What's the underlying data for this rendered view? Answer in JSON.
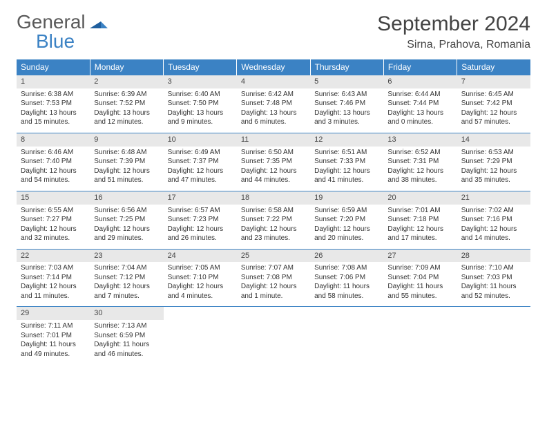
{
  "logo": {
    "word1": "General",
    "word2": "Blue"
  },
  "title": "September 2024",
  "location": "Sirna, Prahova, Romania",
  "colors": {
    "header_bg": "#3b82c4",
    "header_text": "#ffffff",
    "daynum_bg": "#e8e8e8",
    "row_border": "#3b82c4",
    "body_bg": "#ffffff"
  },
  "weekdays": [
    "Sunday",
    "Monday",
    "Tuesday",
    "Wednesday",
    "Thursday",
    "Friday",
    "Saturday"
  ],
  "weeks": [
    [
      {
        "n": "1",
        "sr": "Sunrise: 6:38 AM",
        "ss": "Sunset: 7:53 PM",
        "d1": "Daylight: 13 hours",
        "d2": "and 15 minutes."
      },
      {
        "n": "2",
        "sr": "Sunrise: 6:39 AM",
        "ss": "Sunset: 7:52 PM",
        "d1": "Daylight: 13 hours",
        "d2": "and 12 minutes."
      },
      {
        "n": "3",
        "sr": "Sunrise: 6:40 AM",
        "ss": "Sunset: 7:50 PM",
        "d1": "Daylight: 13 hours",
        "d2": "and 9 minutes."
      },
      {
        "n": "4",
        "sr": "Sunrise: 6:42 AM",
        "ss": "Sunset: 7:48 PM",
        "d1": "Daylight: 13 hours",
        "d2": "and 6 minutes."
      },
      {
        "n": "5",
        "sr": "Sunrise: 6:43 AM",
        "ss": "Sunset: 7:46 PM",
        "d1": "Daylight: 13 hours",
        "d2": "and 3 minutes."
      },
      {
        "n": "6",
        "sr": "Sunrise: 6:44 AM",
        "ss": "Sunset: 7:44 PM",
        "d1": "Daylight: 13 hours",
        "d2": "and 0 minutes."
      },
      {
        "n": "7",
        "sr": "Sunrise: 6:45 AM",
        "ss": "Sunset: 7:42 PM",
        "d1": "Daylight: 12 hours",
        "d2": "and 57 minutes."
      }
    ],
    [
      {
        "n": "8",
        "sr": "Sunrise: 6:46 AM",
        "ss": "Sunset: 7:40 PM",
        "d1": "Daylight: 12 hours",
        "d2": "and 54 minutes."
      },
      {
        "n": "9",
        "sr": "Sunrise: 6:48 AM",
        "ss": "Sunset: 7:39 PM",
        "d1": "Daylight: 12 hours",
        "d2": "and 51 minutes."
      },
      {
        "n": "10",
        "sr": "Sunrise: 6:49 AM",
        "ss": "Sunset: 7:37 PM",
        "d1": "Daylight: 12 hours",
        "d2": "and 47 minutes."
      },
      {
        "n": "11",
        "sr": "Sunrise: 6:50 AM",
        "ss": "Sunset: 7:35 PM",
        "d1": "Daylight: 12 hours",
        "d2": "and 44 minutes."
      },
      {
        "n": "12",
        "sr": "Sunrise: 6:51 AM",
        "ss": "Sunset: 7:33 PM",
        "d1": "Daylight: 12 hours",
        "d2": "and 41 minutes."
      },
      {
        "n": "13",
        "sr": "Sunrise: 6:52 AM",
        "ss": "Sunset: 7:31 PM",
        "d1": "Daylight: 12 hours",
        "d2": "and 38 minutes."
      },
      {
        "n": "14",
        "sr": "Sunrise: 6:53 AM",
        "ss": "Sunset: 7:29 PM",
        "d1": "Daylight: 12 hours",
        "d2": "and 35 minutes."
      }
    ],
    [
      {
        "n": "15",
        "sr": "Sunrise: 6:55 AM",
        "ss": "Sunset: 7:27 PM",
        "d1": "Daylight: 12 hours",
        "d2": "and 32 minutes."
      },
      {
        "n": "16",
        "sr": "Sunrise: 6:56 AM",
        "ss": "Sunset: 7:25 PM",
        "d1": "Daylight: 12 hours",
        "d2": "and 29 minutes."
      },
      {
        "n": "17",
        "sr": "Sunrise: 6:57 AM",
        "ss": "Sunset: 7:23 PM",
        "d1": "Daylight: 12 hours",
        "d2": "and 26 minutes."
      },
      {
        "n": "18",
        "sr": "Sunrise: 6:58 AM",
        "ss": "Sunset: 7:22 PM",
        "d1": "Daylight: 12 hours",
        "d2": "and 23 minutes."
      },
      {
        "n": "19",
        "sr": "Sunrise: 6:59 AM",
        "ss": "Sunset: 7:20 PM",
        "d1": "Daylight: 12 hours",
        "d2": "and 20 minutes."
      },
      {
        "n": "20",
        "sr": "Sunrise: 7:01 AM",
        "ss": "Sunset: 7:18 PM",
        "d1": "Daylight: 12 hours",
        "d2": "and 17 minutes."
      },
      {
        "n": "21",
        "sr": "Sunrise: 7:02 AM",
        "ss": "Sunset: 7:16 PM",
        "d1": "Daylight: 12 hours",
        "d2": "and 14 minutes."
      }
    ],
    [
      {
        "n": "22",
        "sr": "Sunrise: 7:03 AM",
        "ss": "Sunset: 7:14 PM",
        "d1": "Daylight: 12 hours",
        "d2": "and 11 minutes."
      },
      {
        "n": "23",
        "sr": "Sunrise: 7:04 AM",
        "ss": "Sunset: 7:12 PM",
        "d1": "Daylight: 12 hours",
        "d2": "and 7 minutes."
      },
      {
        "n": "24",
        "sr": "Sunrise: 7:05 AM",
        "ss": "Sunset: 7:10 PM",
        "d1": "Daylight: 12 hours",
        "d2": "and 4 minutes."
      },
      {
        "n": "25",
        "sr": "Sunrise: 7:07 AM",
        "ss": "Sunset: 7:08 PM",
        "d1": "Daylight: 12 hours",
        "d2": "and 1 minute."
      },
      {
        "n": "26",
        "sr": "Sunrise: 7:08 AM",
        "ss": "Sunset: 7:06 PM",
        "d1": "Daylight: 11 hours",
        "d2": "and 58 minutes."
      },
      {
        "n": "27",
        "sr": "Sunrise: 7:09 AM",
        "ss": "Sunset: 7:04 PM",
        "d1": "Daylight: 11 hours",
        "d2": "and 55 minutes."
      },
      {
        "n": "28",
        "sr": "Sunrise: 7:10 AM",
        "ss": "Sunset: 7:03 PM",
        "d1": "Daylight: 11 hours",
        "d2": "and 52 minutes."
      }
    ],
    [
      {
        "n": "29",
        "sr": "Sunrise: 7:11 AM",
        "ss": "Sunset: 7:01 PM",
        "d1": "Daylight: 11 hours",
        "d2": "and 49 minutes."
      },
      {
        "n": "30",
        "sr": "Sunrise: 7:13 AM",
        "ss": "Sunset: 6:59 PM",
        "d1": "Daylight: 11 hours",
        "d2": "and 46 minutes."
      },
      {
        "empty": true
      },
      {
        "empty": true
      },
      {
        "empty": true
      },
      {
        "empty": true
      },
      {
        "empty": true
      }
    ]
  ]
}
